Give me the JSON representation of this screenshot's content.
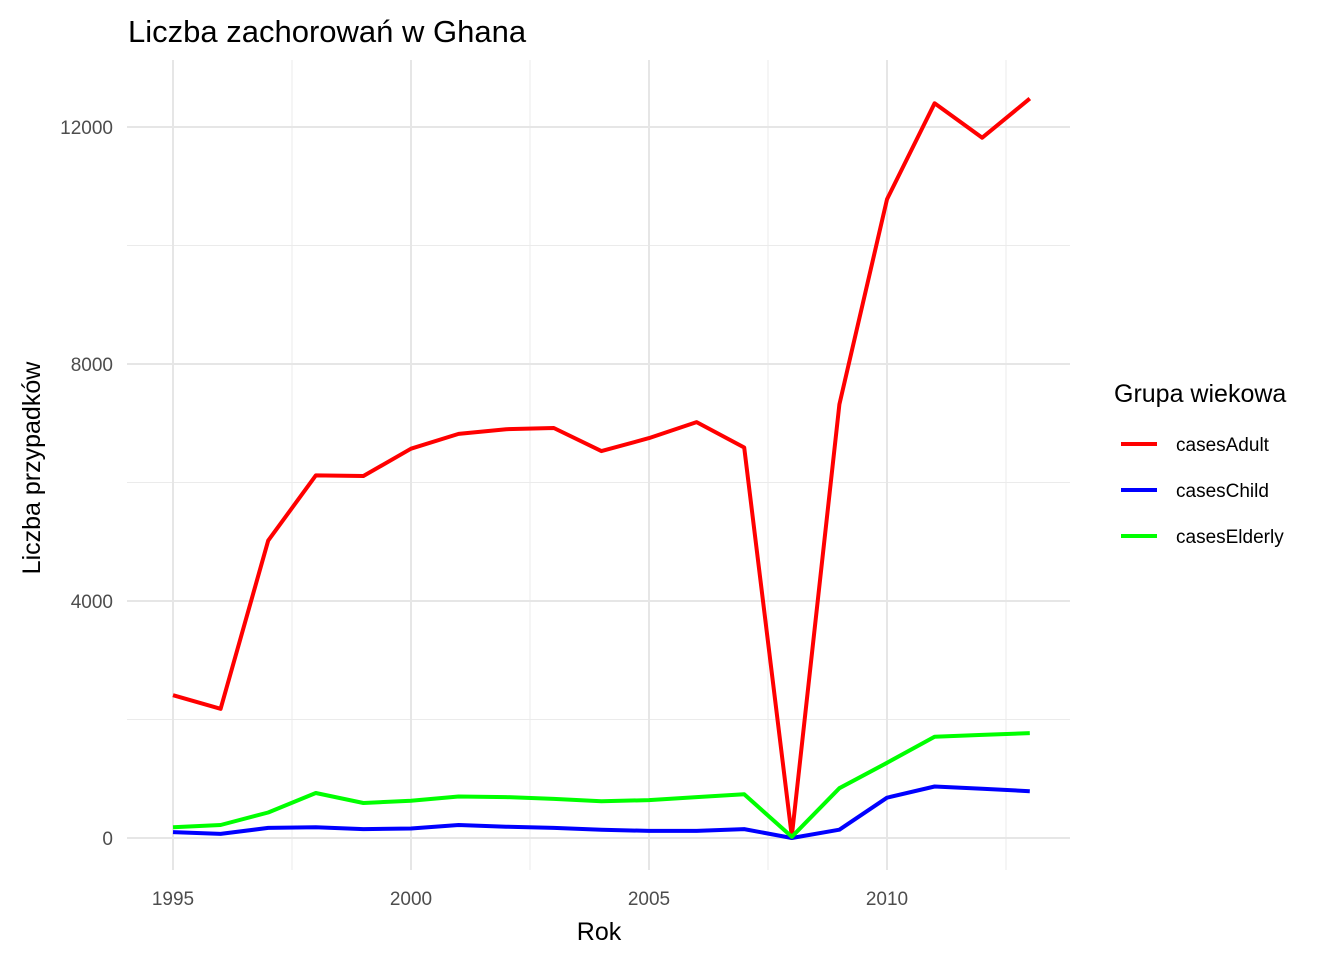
{
  "chart_data": {
    "type": "line",
    "title": "Liczba zachorowań w Ghana",
    "xlabel": "Rok",
    "ylabel": "Liczba przypadków",
    "xlim": [
      1995,
      2013
    ],
    "ylim": [
      0,
      12500
    ],
    "x_ticks": [
      1995,
      2000,
      2005,
      2010
    ],
    "x_tick_labels": [
      "1995",
      "2000",
      "2005",
      "2010"
    ],
    "y_ticks": [
      0,
      4000,
      8000,
      12000
    ],
    "y_tick_labels": [
      "0",
      "4000",
      "8000",
      "12000"
    ],
    "grid": true,
    "legend": {
      "title": "Grupa wiekowa",
      "placement": "right"
    },
    "x": [
      1995,
      1996,
      1997,
      1998,
      1999,
      2000,
      2001,
      2002,
      2003,
      2004,
      2005,
      2006,
      2007,
      2008,
      2009,
      2010,
      2011,
      2012,
      2013
    ],
    "series": [
      {
        "name": "casesAdult",
        "color": "#ff0000",
        "values": [
          2410,
          2180,
          5020,
          6120,
          6110,
          6570,
          6820,
          6900,
          6920,
          6530,
          6750,
          7020,
          6590,
          30,
          7320,
          10780,
          12400,
          11820,
          12480
        ]
      },
      {
        "name": "casesChild",
        "color": "#0000ff",
        "values": [
          100,
          70,
          170,
          180,
          150,
          160,
          220,
          190,
          170,
          140,
          120,
          120,
          150,
          0,
          140,
          680,
          870,
          830,
          790
        ]
      },
      {
        "name": "casesElderly",
        "color": "#00ff00",
        "values": [
          180,
          220,
          430,
          760,
          590,
          630,
          700,
          690,
          660,
          620,
          640,
          690,
          740,
          20,
          840,
          1270,
          1710,
          1740,
          1770
        ]
      }
    ]
  }
}
